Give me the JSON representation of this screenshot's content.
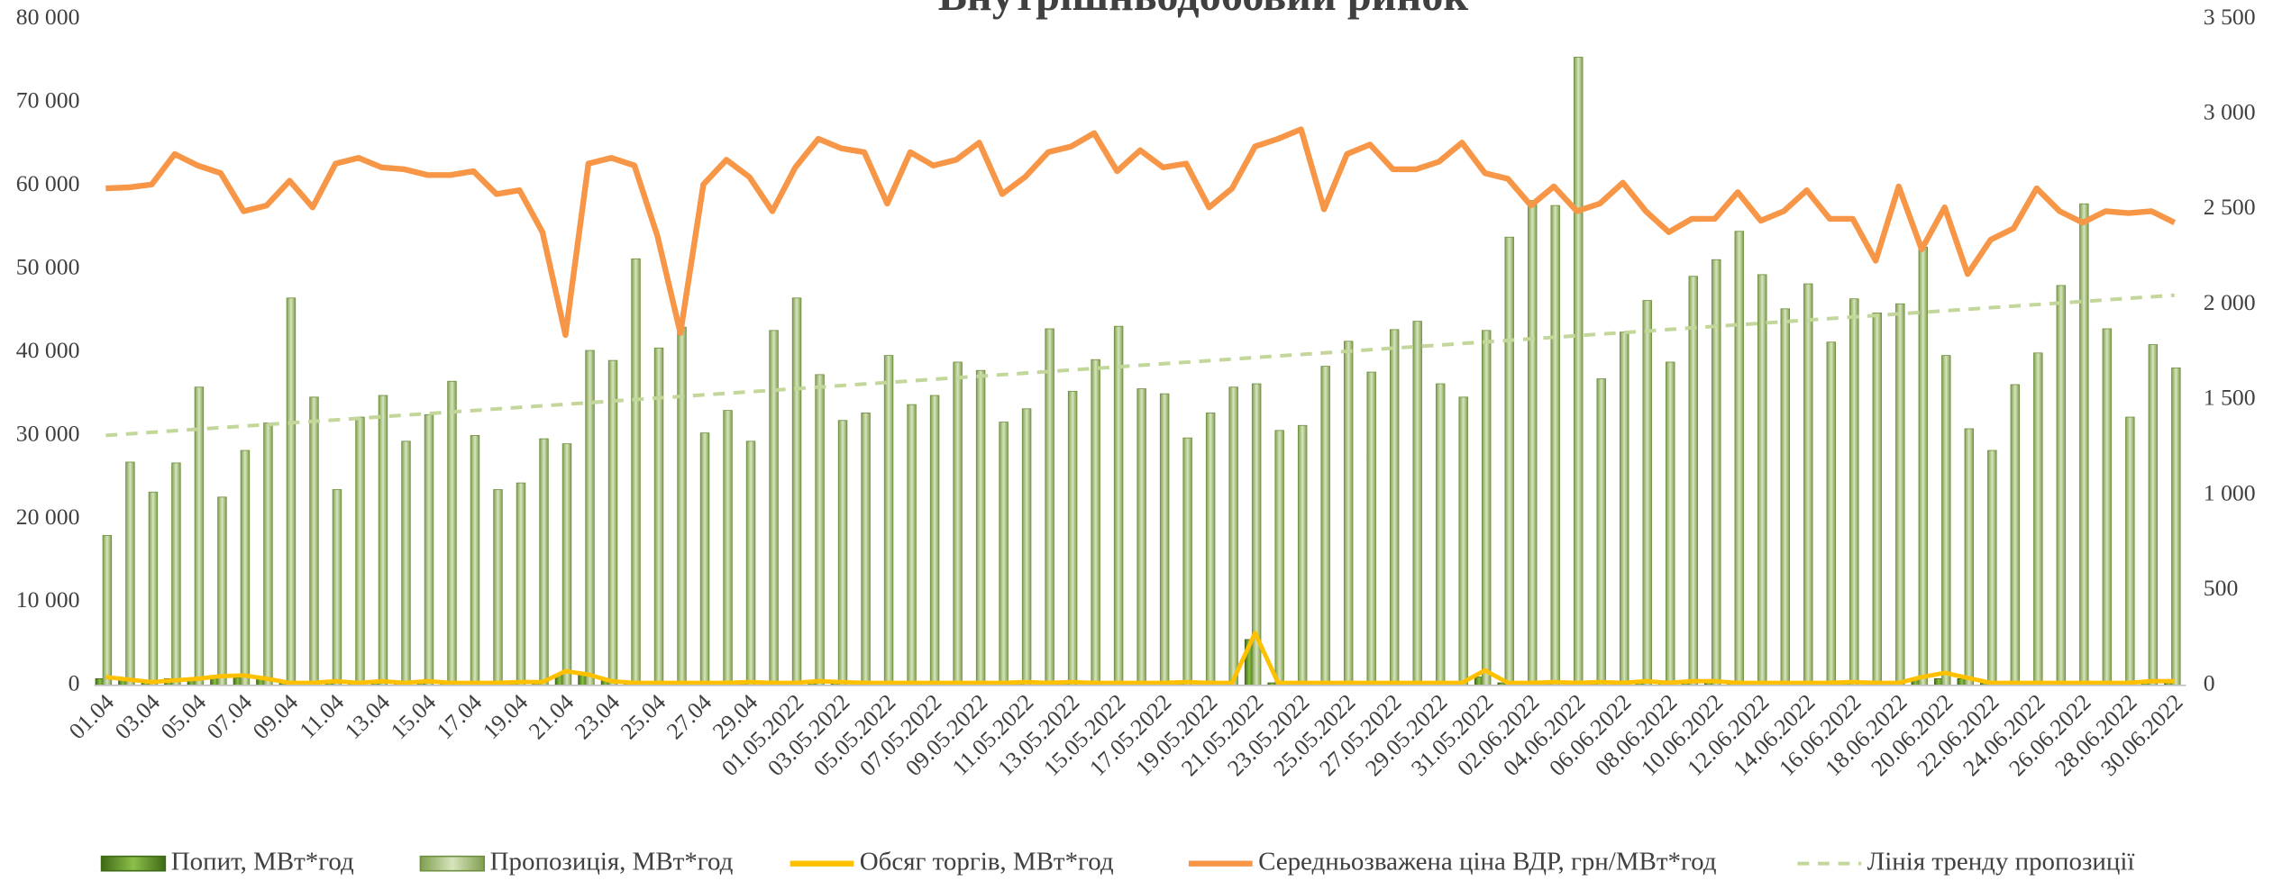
{
  "chart_data": {
    "type": "combo",
    "title": "Внутрішньодобовий ринок",
    "categories": [
      "01.04",
      null,
      "03.04",
      null,
      "05.04",
      null,
      "07.04",
      null,
      "09.04",
      null,
      "11.04",
      null,
      "13.04",
      null,
      "15.04",
      null,
      "17.04",
      null,
      "19.04",
      null,
      "21.04",
      null,
      "23.04",
      null,
      "25.04",
      null,
      "27.04",
      null,
      "29.04",
      null,
      "01.05.2022",
      null,
      "03.05.2022",
      null,
      "05.05.2022",
      null,
      "07.05.2022",
      null,
      "09.05.2022",
      null,
      "11.05.2022",
      null,
      "13.05.2022",
      null,
      "15.05.2022",
      null,
      "17.05.2022",
      null,
      "19.05.2022",
      null,
      "21.05.2022",
      null,
      "23.05.2022",
      null,
      "25.05.2022",
      null,
      "27.05.2022",
      null,
      "29.05.2022",
      null,
      "31.05.2022",
      null,
      "02.06.2022",
      null,
      "04.06.2022",
      null,
      "06.06.2022",
      null,
      "08.06.2022",
      null,
      "10.06.2022",
      null,
      "12.06.2022",
      null,
      "14.06.2022",
      null,
      "16.06.2022",
      null,
      "18.06.2022",
      null,
      "20.06.2022",
      null,
      "22.06.2022",
      null,
      "24.06.2022",
      null,
      "26.06.2022",
      null,
      "28.06.2022",
      null,
      "30.06.2022"
    ],
    "ylim": [
      0,
      80000
    ],
    "yticks": [
      0,
      {
        "value": 10000,
        "label": "10 000"
      },
      {
        "value": 20000,
        "label": "20 000"
      },
      {
        "value": 30000,
        "label": "30 000"
      },
      {
        "value": 40000,
        "label": "40 000"
      },
      {
        "value": 50000,
        "label": "50 000"
      },
      {
        "value": 60000,
        "label": "60 000"
      },
      {
        "value": 70000,
        "label": "70 000"
      },
      {
        "value": 80000,
        "label": "80 000"
      }
    ],
    "y2lim": [
      0,
      3500
    ],
    "y2ticks": [
      0,
      500,
      {
        "value": 1000,
        "label": "1 000"
      },
      {
        "value": 1500,
        "label": "1 500"
      },
      {
        "value": 2000,
        "label": "2 000"
      },
      {
        "value": 2500,
        "label": "2 500"
      },
      {
        "value": 3000,
        "label": "3 000"
      },
      {
        "value": 3500,
        "label": "3 500"
      }
    ],
    "series": [
      {
        "name": "Попит, МВт*год",
        "kind": "bar",
        "color": "#5e8c2c",
        "values": [
          800,
          800,
          600,
          800,
          900,
          800,
          900,
          800,
          300,
          300,
          400,
          300,
          400,
          300,
          400,
          300,
          300,
          300,
          300,
          300,
          1200,
          1200,
          600,
          300,
          300,
          300,
          300,
          300,
          300,
          300,
          300,
          300,
          300,
          300,
          300,
          300,
          300,
          300,
          300,
          300,
          300,
          300,
          300,
          300,
          300,
          300,
          300,
          300,
          300,
          300,
          5500,
          300,
          300,
          300,
          300,
          300,
          300,
          300,
          300,
          300,
          1000,
          300,
          300,
          300,
          300,
          300,
          300,
          500,
          300,
          500,
          500,
          300,
          300,
          300,
          300,
          300,
          300,
          300,
          300,
          800,
          800,
          800,
          300,
          300,
          300,
          300,
          300,
          300,
          300,
          300,
          300
        ]
      },
      {
        "name": "Пропозиція, МВт*год",
        "kind": "bar",
        "color": "#a9c47f",
        "values": [
          18000,
          26800,
          23200,
          26700,
          35800,
          22600,
          28200,
          31500,
          46500,
          34600,
          23500,
          32200,
          34800,
          29300,
          32500,
          36500,
          30000,
          23500,
          24300,
          29600,
          29000,
          40200,
          39000,
          51200,
          40500,
          43000,
          30300,
          33000,
          29300,
          42600,
          46500,
          37300,
          31800,
          32700,
          39600,
          33700,
          34800,
          38800,
          37800,
          31600,
          33200,
          42800,
          35300,
          39100,
          43100,
          35600,
          35000,
          29700,
          32700,
          35800,
          36200,
          30600,
          31200,
          38300,
          41300,
          37600,
          42700,
          43700,
          36200,
          34600,
          42600,
          53800,
          58200,
          57600,
          75400,
          36800,
          42400,
          46200,
          38800,
          49100,
          51100,
          54500,
          49300,
          45200,
          48200,
          41200,
          46400,
          44700,
          45800,
          52600,
          39600,
          30800,
          28200,
          36100,
          39900,
          48000,
          57800,
          42800,
          32200,
          40900,
          38100
        ]
      },
      {
        "name": "Обсяг торгів, МВт*год",
        "kind": "line",
        "color": "#ffc000",
        "values": [
          1000,
          700,
          400,
          600,
          800,
          1100,
          1200,
          800,
          300,
          300,
          500,
          300,
          500,
          300,
          500,
          300,
          300,
          300,
          400,
          400,
          1700,
          1300,
          500,
          300,
          300,
          300,
          300,
          300,
          400,
          300,
          300,
          500,
          400,
          300,
          300,
          300,
          300,
          300,
          300,
          300,
          400,
          300,
          400,
          300,
          300,
          300,
          300,
          400,
          300,
          300,
          6300,
          300,
          300,
          300,
          300,
          300,
          300,
          300,
          300,
          300,
          1800,
          300,
          300,
          400,
          300,
          400,
          300,
          500,
          300,
          500,
          500,
          300,
          300,
          300,
          300,
          300,
          400,
          300,
          300,
          1000,
          1500,
          900,
          300,
          300,
          300,
          300,
          300,
          300,
          300,
          500,
          500
        ]
      },
      {
        "name": "Середньозважена ціна ВДР, грн/МВт*год",
        "kind": "line",
        "axis": "y2",
        "color": "#f79646",
        "values": [
          2610,
          2615,
          2630,
          2790,
          2730,
          2690,
          2490,
          2520,
          2650,
          2510,
          2740,
          2770,
          2720,
          2710,
          2680,
          2680,
          2700,
          2580,
          2600,
          2380,
          1840,
          2740,
          2770,
          2730,
          2360,
          1850,
          2630,
          2760,
          2670,
          2490,
          2720,
          2870,
          2820,
          2800,
          2530,
          2800,
          2730,
          2760,
          2850,
          2580,
          2670,
          2800,
          2830,
          2900,
          2700,
          2810,
          2720,
          2740,
          2510,
          2610,
          2830,
          2870,
          2920,
          2500,
          2790,
          2840,
          2710,
          2710,
          2750,
          2850,
          2690,
          2660,
          2520,
          2620,
          2490,
          2530,
          2640,
          2490,
          2380,
          2450,
          2450,
          2590,
          2440,
          2490,
          2600,
          2450,
          2450,
          2230,
          2620,
          2290,
          2510,
          2160,
          2340,
          2400,
          2610,
          2490,
          2430,
          2490,
          2480,
          2490,
          2430
        ]
      },
      {
        "name": "Лінія тренду пропозиції",
        "kind": "trend",
        "color": "#c4d79b",
        "values": [
          30000,
          30187,
          30374,
          30561,
          30748,
          30935,
          31122,
          31309,
          31496,
          31683,
          31870,
          32057,
          32244,
          32431,
          32618,
          32805,
          32992,
          33179,
          33366,
          33553,
          33740,
          33927,
          34114,
          34301,
          34488,
          34675,
          34862,
          35049,
          35236,
          35423,
          35610,
          35797,
          35984,
          36171,
          36358,
          36545,
          36732,
          36919,
          37106,
          37293,
          37480,
          37667,
          37854,
          38041,
          38228,
          38415,
          38602,
          38789,
          38976,
          39163,
          39350,
          39537,
          39724,
          39911,
          40098,
          40285,
          40472,
          40659,
          40846,
          41033,
          41220,
          41407,
          41594,
          41781,
          41968,
          42155,
          42342,
          42529,
          42716,
          42903,
          43090,
          43277,
          43464,
          43651,
          43838,
          44025,
          44212,
          44399,
          44586,
          44773,
          44960,
          45147,
          45334,
          45521,
          45708,
          45895,
          46082,
          46269,
          46456,
          46643,
          46830
        ]
      }
    ]
  }
}
